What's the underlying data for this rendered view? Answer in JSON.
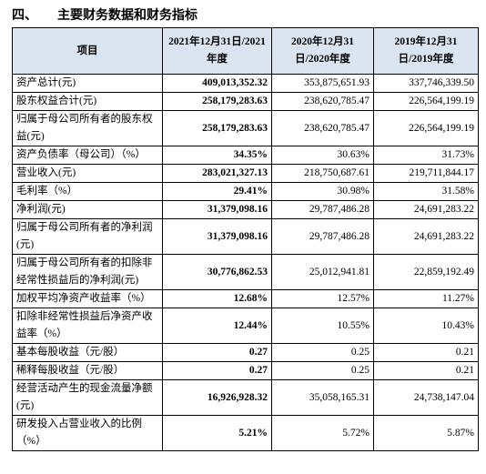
{
  "heading": {
    "number": "四、",
    "title": "主要财务数据和财务指标"
  },
  "table": {
    "header": [
      "项目",
      "2021年12月31日/2021年度",
      "2020年12月31日/2020年度",
      "2019年12月31日/2019年度"
    ],
    "rows": [
      [
        "资产总计(元)",
        "409,013,352.32",
        "353,875,651.93",
        "337,746,339.50"
      ],
      [
        "股东权益合计(元)",
        "258,179,283.63",
        "238,620,785.47",
        "226,564,199.19"
      ],
      [
        "归属于母公司所有者的股东权益(元)",
        "258,179,283.63",
        "238,620,785.47",
        "226,564,199.19"
      ],
      [
        "资产负债率（母公司）（%）",
        "34.35%",
        "30.63%",
        "31.73%"
      ],
      [
        "营业收入(元)",
        "283,021,327.13",
        "218,750,687.61",
        "219,711,844.17"
      ],
      [
        "毛利率（%）",
        "29.41%",
        "30.98%",
        "31.58%"
      ],
      [
        "净利润(元)",
        "31,379,098.16",
        "29,787,486.28",
        "24,691,283.22"
      ],
      [
        "归属于母公司所有者的净利润(元)",
        "31,379,098.16",
        "29,787,486.28",
        "24,691,283.22"
      ],
      [
        "归属于母公司所有者的扣除非经常性损益后的净利润(元)",
        "30,776,862.53",
        "25,012,941.81",
        "22,859,192.49"
      ],
      [
        "加权平均净资产收益率（%）",
        "12.68%",
        "12.57%",
        "11.27%"
      ],
      [
        "扣除非经常性损益后净资产收益率（%）",
        "12.44%",
        "10.55%",
        "10.43%"
      ],
      [
        "基本每股收益（元/股）",
        "0.27",
        "0.25",
        "0.21"
      ],
      [
        "稀释每股收益（元/股）",
        "0.27",
        "0.25",
        "0.21"
      ],
      [
        "经营活动产生的现金流量净额(元)",
        "16,926,928.32",
        "35,058,165.31",
        "24,738,147.04"
      ],
      [
        "研发投入占营业收入的比例（%）",
        "5.21%",
        "5.72%",
        "5.87%"
      ]
    ]
  }
}
